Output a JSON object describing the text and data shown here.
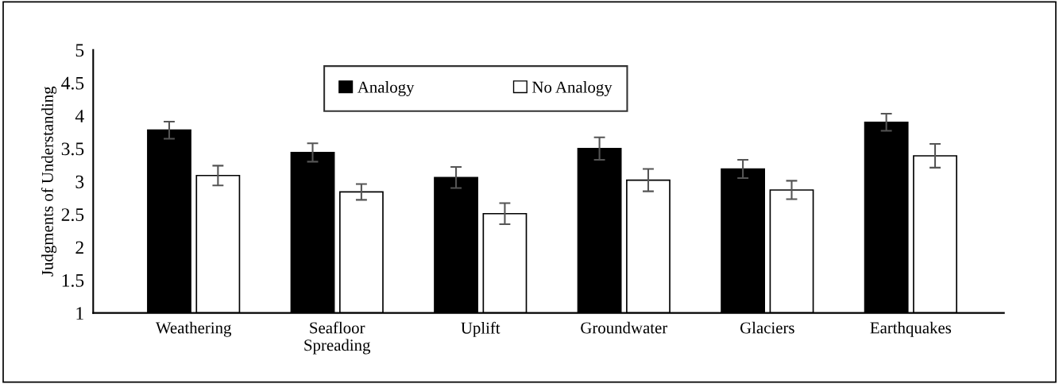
{
  "chart_data": {
    "type": "bar",
    "ylabel": "Judgments of Understanding",
    "categories": [
      "Weathering",
      "Seafloor\nSpreading",
      "Uplift",
      "Groundwater",
      "Glaciers",
      "Earthquakes"
    ],
    "series": [
      {
        "name": "Analogy",
        "color": "#000000",
        "values": [
          3.78,
          3.44,
          3.06,
          3.5,
          3.19,
          3.9
        ],
        "errors": [
          0.13,
          0.14,
          0.16,
          0.17,
          0.14,
          0.13
        ]
      },
      {
        "name": "No Analogy",
        "color": "#ffffff",
        "values": [
          3.09,
          2.84,
          2.51,
          3.02,
          2.87,
          3.39
        ],
        "errors": [
          0.15,
          0.12,
          0.16,
          0.17,
          0.14,
          0.18
        ]
      }
    ],
    "ylim": [
      1,
      5
    ],
    "yticks": [
      1,
      1.5,
      2,
      2.5,
      3,
      3.5,
      4,
      4.5,
      5
    ],
    "grid": false,
    "legend": "top"
  }
}
